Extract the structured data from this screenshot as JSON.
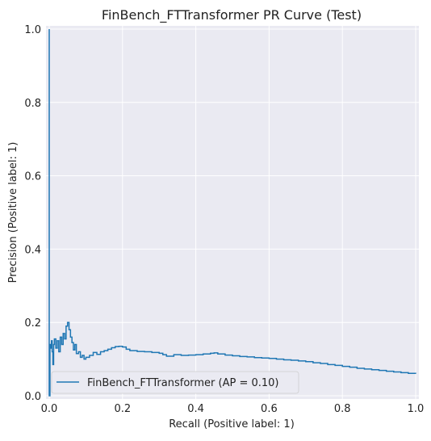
{
  "chart_data": {
    "type": "line",
    "title": "FinBench_FTTransformer PR Curve (Test)",
    "xlabel": "Recall (Positive label: 1)",
    "ylabel": "Precision (Positive label: 1)",
    "xlim": [
      0,
      1
    ],
    "ylim": [
      0,
      1
    ],
    "x_ticks": [
      "0.0",
      "0.2",
      "0.4",
      "0.6",
      "0.8",
      "1.0"
    ],
    "y_ticks": [
      "0.0",
      "0.2",
      "0.4",
      "0.6",
      "0.8",
      "1.0"
    ],
    "grid": true,
    "legend": {
      "position": "lower-left"
    },
    "series": [
      {
        "name": "FinBench_FTTransformer (AP = 0.10)",
        "color": "#1f77b4",
        "drawstyle": "steps-post",
        "points": [
          [
            0.0,
            1.0
          ],
          [
            0.0,
            0.0
          ],
          [
            0.002,
            0.0
          ],
          [
            0.002,
            0.14
          ],
          [
            0.004,
            0.13
          ],
          [
            0.006,
            0.15
          ],
          [
            0.008,
            0.12
          ],
          [
            0.01,
            0.085
          ],
          [
            0.012,
            0.14
          ],
          [
            0.014,
            0.155
          ],
          [
            0.018,
            0.13
          ],
          [
            0.022,
            0.15
          ],
          [
            0.026,
            0.12
          ],
          [
            0.03,
            0.16
          ],
          [
            0.034,
            0.14
          ],
          [
            0.038,
            0.17
          ],
          [
            0.042,
            0.155
          ],
          [
            0.046,
            0.19
          ],
          [
            0.05,
            0.2
          ],
          [
            0.054,
            0.18
          ],
          [
            0.058,
            0.16
          ],
          [
            0.062,
            0.145
          ],
          [
            0.066,
            0.125
          ],
          [
            0.07,
            0.14
          ],
          [
            0.074,
            0.115
          ],
          [
            0.08,
            0.12
          ],
          [
            0.085,
            0.105
          ],
          [
            0.09,
            0.11
          ],
          [
            0.095,
            0.1
          ],
          [
            0.1,
            0.105
          ],
          [
            0.11,
            0.11
          ],
          [
            0.12,
            0.118
          ],
          [
            0.13,
            0.113
          ],
          [
            0.14,
            0.12
          ],
          [
            0.15,
            0.123
          ],
          [
            0.16,
            0.127
          ],
          [
            0.17,
            0.131
          ],
          [
            0.18,
            0.134
          ],
          [
            0.19,
            0.135
          ],
          [
            0.2,
            0.133
          ],
          [
            0.21,
            0.127
          ],
          [
            0.22,
            0.123
          ],
          [
            0.24,
            0.121
          ],
          [
            0.26,
            0.12
          ],
          [
            0.28,
            0.118
          ],
          [
            0.3,
            0.116
          ],
          [
            0.31,
            0.112
          ],
          [
            0.32,
            0.108
          ],
          [
            0.34,
            0.112
          ],
          [
            0.36,
            0.11
          ],
          [
            0.38,
            0.111
          ],
          [
            0.4,
            0.112
          ],
          [
            0.42,
            0.114
          ],
          [
            0.44,
            0.116
          ],
          [
            0.45,
            0.117
          ],
          [
            0.46,
            0.114
          ],
          [
            0.48,
            0.111
          ],
          [
            0.5,
            0.109
          ],
          [
            0.52,
            0.107
          ],
          [
            0.54,
            0.106
          ],
          [
            0.56,
            0.104
          ],
          [
            0.58,
            0.103
          ],
          [
            0.6,
            0.102
          ],
          [
            0.62,
            0.1
          ],
          [
            0.64,
            0.098
          ],
          [
            0.66,
            0.097
          ],
          [
            0.68,
            0.095
          ],
          [
            0.7,
            0.093
          ],
          [
            0.72,
            0.09
          ],
          [
            0.74,
            0.088
          ],
          [
            0.76,
            0.085
          ],
          [
            0.78,
            0.083
          ],
          [
            0.8,
            0.08
          ],
          [
            0.82,
            0.078
          ],
          [
            0.84,
            0.075
          ],
          [
            0.86,
            0.073
          ],
          [
            0.88,
            0.071
          ],
          [
            0.9,
            0.069
          ],
          [
            0.92,
            0.067
          ],
          [
            0.94,
            0.065
          ],
          [
            0.96,
            0.063
          ],
          [
            0.98,
            0.061
          ],
          [
            1.0,
            0.06
          ]
        ]
      }
    ]
  }
}
